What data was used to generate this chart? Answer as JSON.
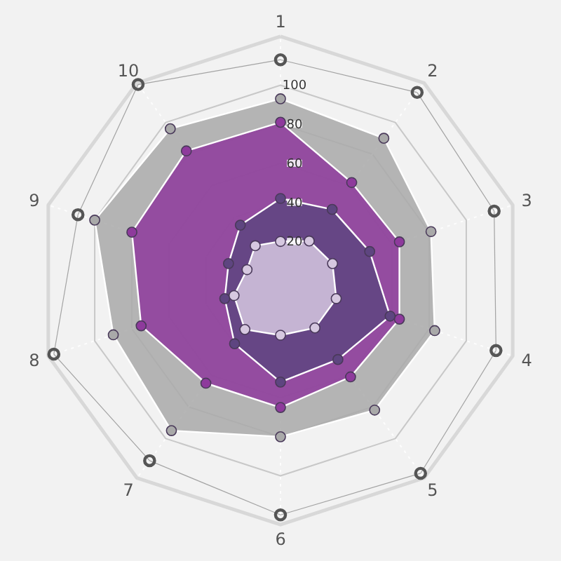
{
  "chart_data": {
    "type": "radar",
    "categories": [
      "1",
      "2",
      "3",
      "4",
      "5",
      "6",
      "7",
      "8",
      "9",
      "10"
    ],
    "ylim": [
      0,
      125
    ],
    "yticks": [
      20,
      40,
      60,
      80,
      100
    ],
    "grid": true,
    "marker": "circle",
    "series": [
      {
        "color": "#555555",
        "values": [
          113,
          119,
          115,
          116,
          122,
          120,
          114,
          122,
          109,
          124
        ]
      },
      {
        "color": "#a9a9a9",
        "values": [
          93,
          90,
          81,
          83,
          82,
          80,
          95,
          90,
          100,
          96
        ]
      },
      {
        "color": "#8e3a9c",
        "values": [
          81,
          62,
          64,
          64,
          61,
          65,
          65,
          75,
          80,
          82
        ]
      },
      {
        "color": "#5e4580",
        "values": [
          42,
          45,
          48,
          59,
          50,
          52,
          40,
          30,
          28,
          35
        ]
      },
      {
        "color": "#d6c8e0",
        "values": [
          20,
          25,
          28,
          30,
          30,
          28,
          31,
          25,
          18,
          22
        ]
      }
    ]
  }
}
